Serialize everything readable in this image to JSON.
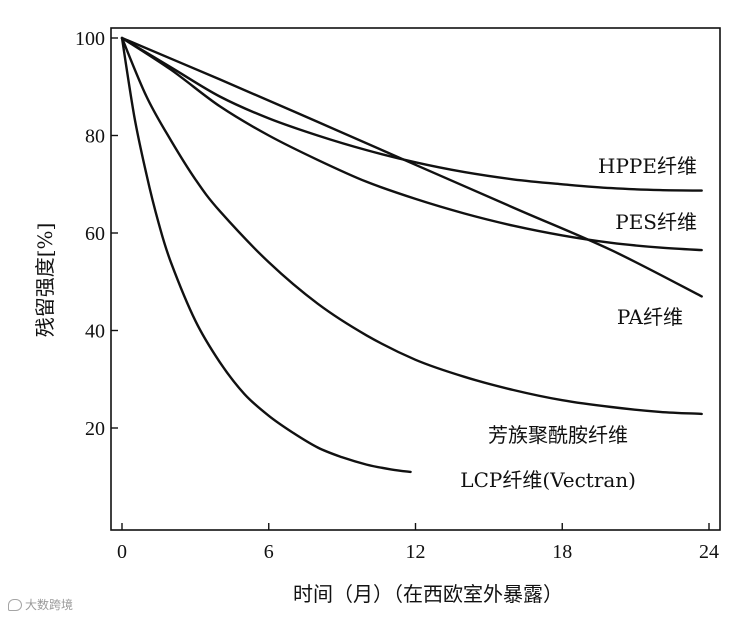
{
  "chart_data": {
    "type": "line",
    "xlabel": "时间（月）（在西欧室外暴露）",
    "ylabel": "残留强度[%]",
    "xlim": [
      -0.5,
      24
    ],
    "ylim": [
      2.4,
      102
    ],
    "x_ticks": [
      0,
      6,
      12,
      18,
      24
    ],
    "y_ticks": [
      20,
      40,
      60,
      80,
      100
    ],
    "grid": false,
    "legend": "inline labels",
    "series": [
      {
        "name": "HPPE纤维",
        "x": [
          0,
          2,
          4,
          6,
          8,
          10,
          12,
          14,
          16,
          18,
          20,
          22,
          23.7
        ],
        "y": [
          100,
          94,
          88,
          83.5,
          80,
          77,
          74.5,
          72.5,
          71,
          70,
          69.2,
          68.8,
          68.7
        ]
      },
      {
        "name": "PES纤维",
        "x": [
          0,
          2,
          4,
          6,
          8,
          10,
          12,
          14,
          16,
          18,
          20,
          22,
          23.7
        ],
        "y": [
          100,
          93.5,
          86,
          80,
          75,
          70.5,
          67,
          64,
          61.5,
          59.5,
          58,
          57,
          56.5
        ]
      },
      {
        "name": "PA纤维",
        "x": [
          0,
          4,
          8,
          12,
          16,
          20,
          23.7
        ],
        "y": [
          100,
          91.5,
          82.8,
          74,
          65.2,
          56.5,
          47
        ]
      },
      {
        "name": "芳族聚酰胺纤维",
        "x": [
          0,
          1,
          2,
          3,
          4,
          6,
          8,
          10,
          12,
          14,
          16,
          18,
          20,
          22,
          23.7
        ],
        "y": [
          100,
          88,
          79,
          71,
          64.5,
          54,
          45.5,
          39,
          34,
          30.5,
          27.8,
          25.7,
          24.3,
          23.3,
          22.9
        ]
      },
      {
        "name": "LCP纤维(Vectran)",
        "x": [
          0,
          0.5,
          1,
          1.5,
          2,
          3,
          4,
          5,
          6,
          7,
          8,
          9,
          10,
          11,
          11.8
        ],
        "y": [
          100,
          84,
          72,
          62,
          54,
          42,
          33.5,
          27,
          22.5,
          19,
          16,
          14,
          12.5,
          11.5,
          11
        ]
      }
    ]
  },
  "watermark": {
    "text": "大数跨境"
  }
}
